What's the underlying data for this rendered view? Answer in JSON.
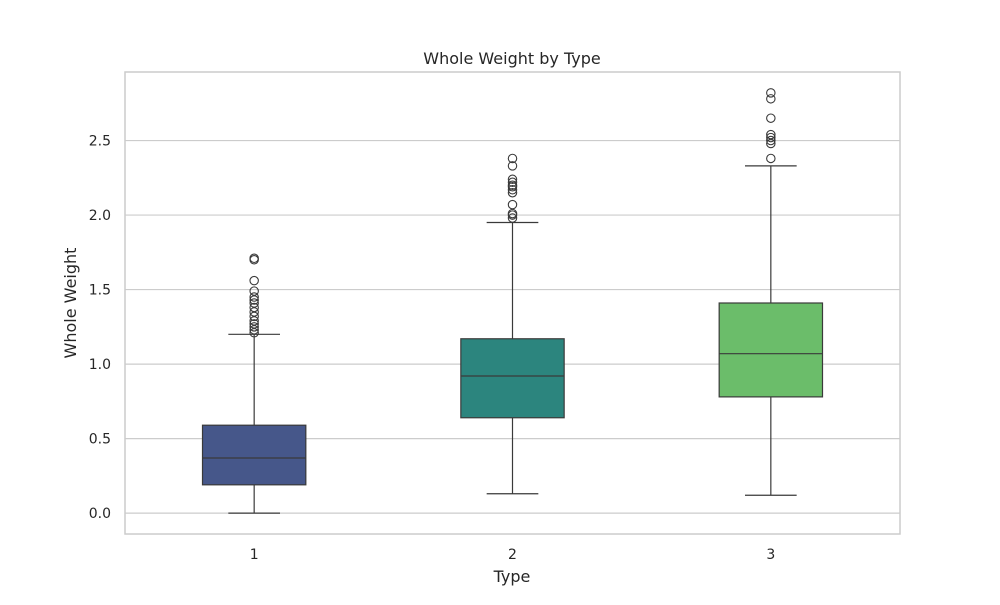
{
  "chart_data": {
    "type": "box",
    "title": "Whole Weight by Type",
    "xlabel": "Type",
    "ylabel": "Whole Weight",
    "categories": [
      "1",
      "2",
      "3"
    ],
    "ylim": [
      -0.14,
      2.96
    ],
    "yticks": [
      0.0,
      0.5,
      1.0,
      1.5,
      2.0,
      2.5
    ],
    "ytick_labels": [
      "0.0",
      "0.5",
      "1.0",
      "1.5",
      "2.0",
      "2.5"
    ],
    "grid": true,
    "boxes": [
      {
        "category": "1",
        "color": "#46578a",
        "whisker_low": 0.0,
        "q1": 0.19,
        "median": 0.37,
        "q3": 0.59,
        "whisker_high": 1.2,
        "outliers": [
          1.21,
          1.23,
          1.25,
          1.27,
          1.29,
          1.32,
          1.35,
          1.38,
          1.41,
          1.43,
          1.45,
          1.49,
          1.56,
          1.7,
          1.71
        ]
      },
      {
        "category": "2",
        "color": "#2c857e",
        "whisker_low": 0.13,
        "q1": 0.64,
        "median": 0.92,
        "q3": 1.17,
        "whisker_high": 1.95,
        "outliers": [
          1.98,
          2.0,
          2.01,
          2.07,
          2.15,
          2.17,
          2.19,
          2.2,
          2.22,
          2.24,
          2.33,
          2.38
        ]
      },
      {
        "category": "3",
        "color": "#6bbd6a",
        "whisker_low": 0.12,
        "q1": 0.78,
        "median": 1.07,
        "q3": 1.41,
        "whisker_high": 2.33,
        "outliers": [
          2.38,
          2.48,
          2.5,
          2.52,
          2.54,
          2.65,
          2.78,
          2.82
        ]
      }
    ]
  }
}
